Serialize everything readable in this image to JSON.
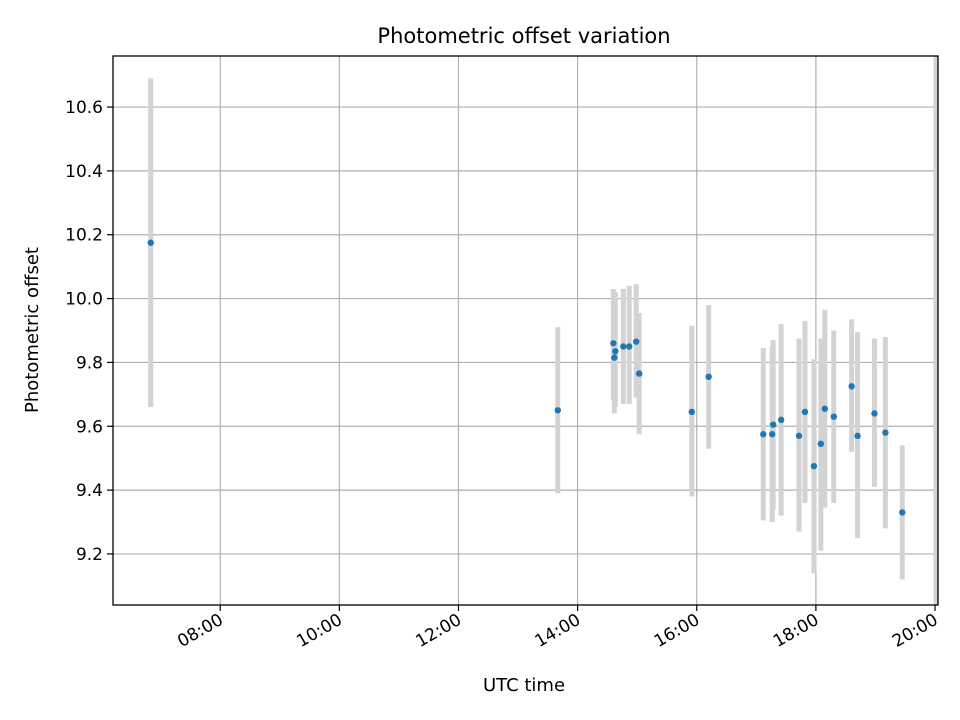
{
  "chart_data": {
    "type": "scatter",
    "title": "Photometric offset variation",
    "xlabel": "UTC time",
    "ylabel": "Photometric offset",
    "xlim": [
      "06:12",
      "20:03"
    ],
    "ylim": [
      9.04,
      10.76
    ],
    "grid": true,
    "legend": "none",
    "x_ticks": [
      "08:00",
      "10:00",
      "12:00",
      "14:00",
      "16:00",
      "18:00",
      "20:00"
    ],
    "y_ticks": [
      9.2,
      9.4,
      9.6,
      9.8,
      10.0,
      10.2,
      10.4,
      10.6
    ],
    "colors": {
      "point": "#1f77b4",
      "errorbar": "#d3d3d3",
      "grid": "#b0b0b0"
    },
    "points": [
      {
        "x": "06:50",
        "y": 10.175,
        "yerr_low": 9.66,
        "yerr_high": 10.69
      },
      {
        "x": "13:40",
        "y": 9.65,
        "yerr_low": 9.39,
        "yerr_high": 9.91
      },
      {
        "x": "14:36",
        "y": 9.86,
        "yerr_low": 9.68,
        "yerr_high": 10.03
      },
      {
        "x": "14:38",
        "y": 9.835,
        "yerr_low": 9.66,
        "yerr_high": 10.02
      },
      {
        "x": "14:37",
        "y": 9.815,
        "yerr_low": 9.64,
        "yerr_high": 9.99
      },
      {
        "x": "14:46",
        "y": 9.85,
        "yerr_low": 9.67,
        "yerr_high": 10.03
      },
      {
        "x": "14:52",
        "y": 9.85,
        "yerr_low": 9.67,
        "yerr_high": 10.04
      },
      {
        "x": "14:59",
        "y": 9.865,
        "yerr_low": 9.69,
        "yerr_high": 10.045
      },
      {
        "x": "15:02",
        "y": 9.765,
        "yerr_low": 9.575,
        "yerr_high": 9.955
      },
      {
        "x": "15:55",
        "y": 9.645,
        "yerr_low": 9.38,
        "yerr_high": 9.915
      },
      {
        "x": "16:12",
        "y": 9.755,
        "yerr_low": 9.53,
        "yerr_high": 9.98
      },
      {
        "x": "17:07",
        "y": 9.575,
        "yerr_low": 9.305,
        "yerr_high": 9.845
      },
      {
        "x": "17:16",
        "y": 9.575,
        "yerr_low": 9.3,
        "yerr_high": 9.85
      },
      {
        "x": "17:17",
        "y": 9.605,
        "yerr_low": 9.34,
        "yerr_high": 9.87
      },
      {
        "x": "17:25",
        "y": 9.62,
        "yerr_low": 9.32,
        "yerr_high": 9.92
      },
      {
        "x": "17:43",
        "y": 9.57,
        "yerr_low": 9.27,
        "yerr_high": 9.875
      },
      {
        "x": "17:49",
        "y": 9.645,
        "yerr_low": 9.36,
        "yerr_high": 9.93
      },
      {
        "x": "17:58",
        "y": 9.475,
        "yerr_low": 9.14,
        "yerr_high": 9.81
      },
      {
        "x": "18:05",
        "y": 9.545,
        "yerr_low": 9.21,
        "yerr_high": 9.875
      },
      {
        "x": "18:09",
        "y": 9.655,
        "yerr_low": 9.345,
        "yerr_high": 9.965
      },
      {
        "x": "18:18",
        "y": 9.63,
        "yerr_low": 9.36,
        "yerr_high": 9.9
      },
      {
        "x": "18:36",
        "y": 9.725,
        "yerr_low": 9.52,
        "yerr_high": 9.935
      },
      {
        "x": "18:42",
        "y": 9.57,
        "yerr_low": 9.25,
        "yerr_high": 9.895
      },
      {
        "x": "18:59",
        "y": 9.64,
        "yerr_low": 9.41,
        "yerr_high": 9.875
      },
      {
        "x": "19:10",
        "y": 9.58,
        "yerr_low": 9.28,
        "yerr_high": 9.88
      },
      {
        "x": "19:27",
        "y": 9.33,
        "yerr_low": 9.12,
        "yerr_high": 9.54
      },
      {
        "x": "20:01",
        "y": null,
        "yerr_low": 9.04,
        "yerr_high": 10.76
      }
    ]
  }
}
